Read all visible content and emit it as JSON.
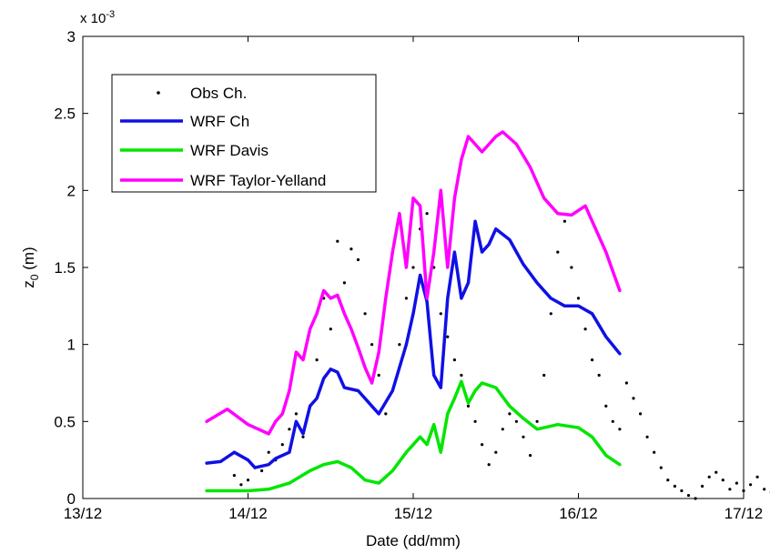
{
  "chart_data": {
    "type": "line",
    "xlabel": "Date (dd/mm)",
    "ylabel": "z",
    "ylabel_subscript": "0",
    "ylabel_unit": " (m)",
    "y_exponent_base": "x 10",
    "y_exponent_power": "-3",
    "xlim": [
      "2012-12-13",
      "2012-12-17"
    ],
    "ylim": [
      0,
      3
    ],
    "x_ticks": [
      {
        "date": "2012-12-13",
        "label": "13/12"
      },
      {
        "date": "2012-12-14",
        "label": "14/12"
      },
      {
        "date": "2012-12-15",
        "label": "15/12"
      },
      {
        "date": "2012-12-16",
        "label": "16/12"
      },
      {
        "date": "2012-12-17",
        "label": "17/12"
      }
    ],
    "y_ticks": [
      {
        "value": 0,
        "label": "0"
      },
      {
        "value": 0.5,
        "label": "0.5"
      },
      {
        "value": 1,
        "label": "1"
      },
      {
        "value": 1.5,
        "label": "1.5"
      },
      {
        "value": 2,
        "label": "2"
      },
      {
        "value": 2.5,
        "label": "2.5"
      },
      {
        "value": 3,
        "label": "3"
      }
    ],
    "grid": false,
    "legend_position": "top-left",
    "series": [
      {
        "name": "Obs Ch.",
        "kind": "points",
        "color": "#000000",
        "points": [
          [
            "2012-12-13 22:00",
            0.15
          ],
          [
            "2012-12-13 23:00",
            0.09
          ],
          [
            "2012-12-14 00:00",
            0.12
          ],
          [
            "2012-12-14 01:00",
            0.2
          ],
          [
            "2012-12-14 02:00",
            0.18
          ],
          [
            "2012-12-14 03:00",
            0.3
          ],
          [
            "2012-12-14 04:00",
            0.25
          ],
          [
            "2012-12-14 05:00",
            0.35
          ],
          [
            "2012-12-14 06:00",
            0.45
          ],
          [
            "2012-12-14 07:00",
            0.55
          ],
          [
            "2012-12-14 08:00",
            0.4
          ],
          [
            "2012-12-14 09:00",
            0.6
          ],
          [
            "2012-12-14 10:00",
            0.9
          ],
          [
            "2012-12-14 11:00",
            1.3
          ],
          [
            "2012-12-14 12:00",
            1.1
          ],
          [
            "2012-12-14 13:00",
            1.67
          ],
          [
            "2012-12-14 14:00",
            1.4
          ],
          [
            "2012-12-14 15:00",
            1.62
          ],
          [
            "2012-12-14 16:00",
            1.55
          ],
          [
            "2012-12-14 17:00",
            1.2
          ],
          [
            "2012-12-14 18:00",
            1.0
          ],
          [
            "2012-12-14 19:00",
            0.8
          ],
          [
            "2012-12-14 20:00",
            0.55
          ],
          [
            "2012-12-14 21:00",
            0.7
          ],
          [
            "2012-12-14 22:00",
            1.0
          ],
          [
            "2012-12-14 23:00",
            1.3
          ],
          [
            "2012-12-15 00:00",
            1.5
          ],
          [
            "2012-12-15 01:00",
            1.75
          ],
          [
            "2012-12-15 02:00",
            1.85
          ],
          [
            "2012-12-15 03:00",
            1.5
          ],
          [
            "2012-12-15 04:00",
            1.2
          ],
          [
            "2012-12-15 05:00",
            1.05
          ],
          [
            "2012-12-15 06:00",
            0.9
          ],
          [
            "2012-12-15 07:00",
            0.8
          ],
          [
            "2012-12-15 08:00",
            0.6
          ],
          [
            "2012-12-15 09:00",
            0.5
          ],
          [
            "2012-12-15 10:00",
            0.35
          ],
          [
            "2012-12-15 11:00",
            0.22
          ],
          [
            "2012-12-15 12:00",
            0.3
          ],
          [
            "2012-12-15 13:00",
            0.45
          ],
          [
            "2012-12-15 14:00",
            0.55
          ],
          [
            "2012-12-15 15:00",
            0.5
          ],
          [
            "2012-12-15 16:00",
            0.4
          ],
          [
            "2012-12-15 17:00",
            0.28
          ],
          [
            "2012-12-15 18:00",
            0.5
          ],
          [
            "2012-12-15 19:00",
            0.8
          ],
          [
            "2012-12-15 20:00",
            1.2
          ],
          [
            "2012-12-15 21:00",
            1.6
          ],
          [
            "2012-12-15 22:00",
            1.8
          ],
          [
            "2012-12-15 23:00",
            1.5
          ],
          [
            "2012-12-16 00:00",
            1.3
          ],
          [
            "2012-12-16 01:00",
            1.1
          ],
          [
            "2012-12-16 02:00",
            0.9
          ],
          [
            "2012-12-16 03:00",
            0.8
          ],
          [
            "2012-12-16 04:00",
            0.6
          ],
          [
            "2012-12-16 05:00",
            0.5
          ],
          [
            "2012-12-16 06:00",
            0.45
          ],
          [
            "2012-12-16 07:00",
            0.75
          ],
          [
            "2012-12-16 08:00",
            0.65
          ],
          [
            "2012-12-16 09:00",
            0.55
          ],
          [
            "2012-12-16 10:00",
            0.4
          ],
          [
            "2012-12-16 11:00",
            0.3
          ],
          [
            "2012-12-16 12:00",
            0.2
          ],
          [
            "2012-12-16 13:00",
            0.12
          ],
          [
            "2012-12-16 14:00",
            0.08
          ],
          [
            "2012-12-16 15:00",
            0.05
          ],
          [
            "2012-12-16 16:00",
            0.02
          ],
          [
            "2012-12-16 17:00",
            0.0
          ],
          [
            "2012-12-16 18:00",
            0.08
          ],
          [
            "2012-12-16 19:00",
            0.14
          ],
          [
            "2012-12-16 20:00",
            0.17
          ],
          [
            "2012-12-16 21:00",
            0.12
          ],
          [
            "2012-12-16 22:00",
            0.06
          ],
          [
            "2012-12-16 23:00",
            0.1
          ],
          [
            "2012-12-17 00:00",
            0.05
          ],
          [
            "2012-12-17 01:00",
            0.09
          ],
          [
            "2012-12-17 02:00",
            0.14
          ],
          [
            "2012-12-17 03:00",
            0.06
          ],
          [
            "2012-12-17 04:00",
            0.04
          ],
          [
            "2012-12-17 05:00",
            0.08
          ],
          [
            "2012-12-17 06:00",
            0.1
          ],
          [
            "2012-12-17 07:00",
            0.05
          ],
          [
            "2012-12-17 08:00",
            0.07
          ]
        ]
      },
      {
        "name": "WRF Ch",
        "kind": "line",
        "color": "#1010e6",
        "points": [
          [
            "2012-12-13 18:00",
            0.23
          ],
          [
            "2012-12-13 20:00",
            0.24
          ],
          [
            "2012-12-13 22:00",
            0.3
          ],
          [
            "2012-12-14 00:00",
            0.25
          ],
          [
            "2012-12-14 01:00",
            0.2
          ],
          [
            "2012-12-14 03:00",
            0.22
          ],
          [
            "2012-12-14 04:00",
            0.26
          ],
          [
            "2012-12-14 06:00",
            0.3
          ],
          [
            "2012-12-14 07:00",
            0.5
          ],
          [
            "2012-12-14 08:00",
            0.42
          ],
          [
            "2012-12-14 09:00",
            0.6
          ],
          [
            "2012-12-14 10:00",
            0.65
          ],
          [
            "2012-12-14 11:00",
            0.78
          ],
          [
            "2012-12-14 12:00",
            0.84
          ],
          [
            "2012-12-14 13:00",
            0.82
          ],
          [
            "2012-12-14 14:00",
            0.72
          ],
          [
            "2012-12-14 16:00",
            0.7
          ],
          [
            "2012-12-14 18:00",
            0.6
          ],
          [
            "2012-12-14 19:00",
            0.55
          ],
          [
            "2012-12-14 21:00",
            0.7
          ],
          [
            "2012-12-14 23:00",
            1.0
          ],
          [
            "2012-12-15 00:00",
            1.2
          ],
          [
            "2012-12-15 01:00",
            1.45
          ],
          [
            "2012-12-15 02:00",
            1.28
          ],
          [
            "2012-12-15 03:00",
            0.8
          ],
          [
            "2012-12-15 04:00",
            0.72
          ],
          [
            "2012-12-15 05:00",
            1.3
          ],
          [
            "2012-12-15 06:00",
            1.6
          ],
          [
            "2012-12-15 07:00",
            1.3
          ],
          [
            "2012-12-15 08:00",
            1.4
          ],
          [
            "2012-12-15 09:00",
            1.8
          ],
          [
            "2012-12-15 10:00",
            1.6
          ],
          [
            "2012-12-15 11:00",
            1.65
          ],
          [
            "2012-12-15 12:00",
            1.75
          ],
          [
            "2012-12-15 14:00",
            1.68
          ],
          [
            "2012-12-15 16:00",
            1.52
          ],
          [
            "2012-12-15 18:00",
            1.4
          ],
          [
            "2012-12-15 20:00",
            1.3
          ],
          [
            "2012-12-15 22:00",
            1.25
          ],
          [
            "2012-12-16 00:00",
            1.25
          ],
          [
            "2012-12-16 02:00",
            1.2
          ],
          [
            "2012-12-16 04:00",
            1.05
          ],
          [
            "2012-12-16 06:00",
            0.94
          ]
        ]
      },
      {
        "name": "WRF Davis",
        "kind": "line",
        "color": "#00e600",
        "points": [
          [
            "2012-12-13 18:00",
            0.05
          ],
          [
            "2012-12-14 00:00",
            0.05
          ],
          [
            "2012-12-14 03:00",
            0.06
          ],
          [
            "2012-12-14 06:00",
            0.1
          ],
          [
            "2012-12-14 09:00",
            0.18
          ],
          [
            "2012-12-14 11:00",
            0.22
          ],
          [
            "2012-12-14 13:00",
            0.24
          ],
          [
            "2012-12-14 15:00",
            0.2
          ],
          [
            "2012-12-14 17:00",
            0.12
          ],
          [
            "2012-12-14 19:00",
            0.1
          ],
          [
            "2012-12-14 21:00",
            0.18
          ],
          [
            "2012-12-14 23:00",
            0.3
          ],
          [
            "2012-12-15 01:00",
            0.4
          ],
          [
            "2012-12-15 02:00",
            0.35
          ],
          [
            "2012-12-15 03:00",
            0.48
          ],
          [
            "2012-12-15 04:00",
            0.3
          ],
          [
            "2012-12-15 05:00",
            0.55
          ],
          [
            "2012-12-15 06:00",
            0.65
          ],
          [
            "2012-12-15 07:00",
            0.76
          ],
          [
            "2012-12-15 08:00",
            0.62
          ],
          [
            "2012-12-15 09:00",
            0.7
          ],
          [
            "2012-12-15 10:00",
            0.75
          ],
          [
            "2012-12-15 12:00",
            0.72
          ],
          [
            "2012-12-15 14:00",
            0.6
          ],
          [
            "2012-12-15 16:00",
            0.52
          ],
          [
            "2012-12-15 18:00",
            0.45
          ],
          [
            "2012-12-15 21:00",
            0.48
          ],
          [
            "2012-12-16 00:00",
            0.46
          ],
          [
            "2012-12-16 02:00",
            0.4
          ],
          [
            "2012-12-16 04:00",
            0.28
          ],
          [
            "2012-12-16 06:00",
            0.22
          ]
        ]
      },
      {
        "name": "WRF Taylor-Yelland",
        "kind": "line",
        "color": "#ff00ff",
        "points": [
          [
            "2012-12-13 18:00",
            0.5
          ],
          [
            "2012-12-13 21:00",
            0.58
          ],
          [
            "2012-12-14 00:00",
            0.48
          ],
          [
            "2012-12-14 03:00",
            0.42
          ],
          [
            "2012-12-14 04:00",
            0.5
          ],
          [
            "2012-12-14 05:00",
            0.55
          ],
          [
            "2012-12-14 06:00",
            0.7
          ],
          [
            "2012-12-14 07:00",
            0.95
          ],
          [
            "2012-12-14 08:00",
            0.9
          ],
          [
            "2012-12-14 09:00",
            1.1
          ],
          [
            "2012-12-14 10:00",
            1.2
          ],
          [
            "2012-12-14 11:00",
            1.35
          ],
          [
            "2012-12-14 12:00",
            1.3
          ],
          [
            "2012-12-14 13:00",
            1.32
          ],
          [
            "2012-12-14 14:00",
            1.2
          ],
          [
            "2012-12-14 15:00",
            1.1
          ],
          [
            "2012-12-14 16:00",
            0.98
          ],
          [
            "2012-12-14 17:00",
            0.85
          ],
          [
            "2012-12-14 18:00",
            0.75
          ],
          [
            "2012-12-14 19:00",
            0.95
          ],
          [
            "2012-12-14 20:00",
            1.3
          ],
          [
            "2012-12-14 21:00",
            1.6
          ],
          [
            "2012-12-14 22:00",
            1.85
          ],
          [
            "2012-12-14 23:00",
            1.5
          ],
          [
            "2012-12-15 00:00",
            1.95
          ],
          [
            "2012-12-15 01:00",
            1.9
          ],
          [
            "2012-12-15 02:00",
            1.3
          ],
          [
            "2012-12-15 03:00",
            1.6
          ],
          [
            "2012-12-15 04:00",
            2.0
          ],
          [
            "2012-12-15 05:00",
            1.5
          ],
          [
            "2012-12-15 06:00",
            1.95
          ],
          [
            "2012-12-15 07:00",
            2.2
          ],
          [
            "2012-12-15 08:00",
            2.35
          ],
          [
            "2012-12-15 09:00",
            2.3
          ],
          [
            "2012-12-15 10:00",
            2.25
          ],
          [
            "2012-12-15 12:00",
            2.35
          ],
          [
            "2012-12-15 13:00",
            2.38
          ],
          [
            "2012-12-15 15:00",
            2.3
          ],
          [
            "2012-12-15 17:00",
            2.15
          ],
          [
            "2012-12-15 19:00",
            1.95
          ],
          [
            "2012-12-15 21:00",
            1.85
          ],
          [
            "2012-12-15 23:00",
            1.84
          ],
          [
            "2012-12-16 01:00",
            1.9
          ],
          [
            "2012-12-16 02:00",
            1.8
          ],
          [
            "2012-12-16 04:00",
            1.6
          ],
          [
            "2012-12-16 06:00",
            1.35
          ]
        ]
      }
    ]
  }
}
